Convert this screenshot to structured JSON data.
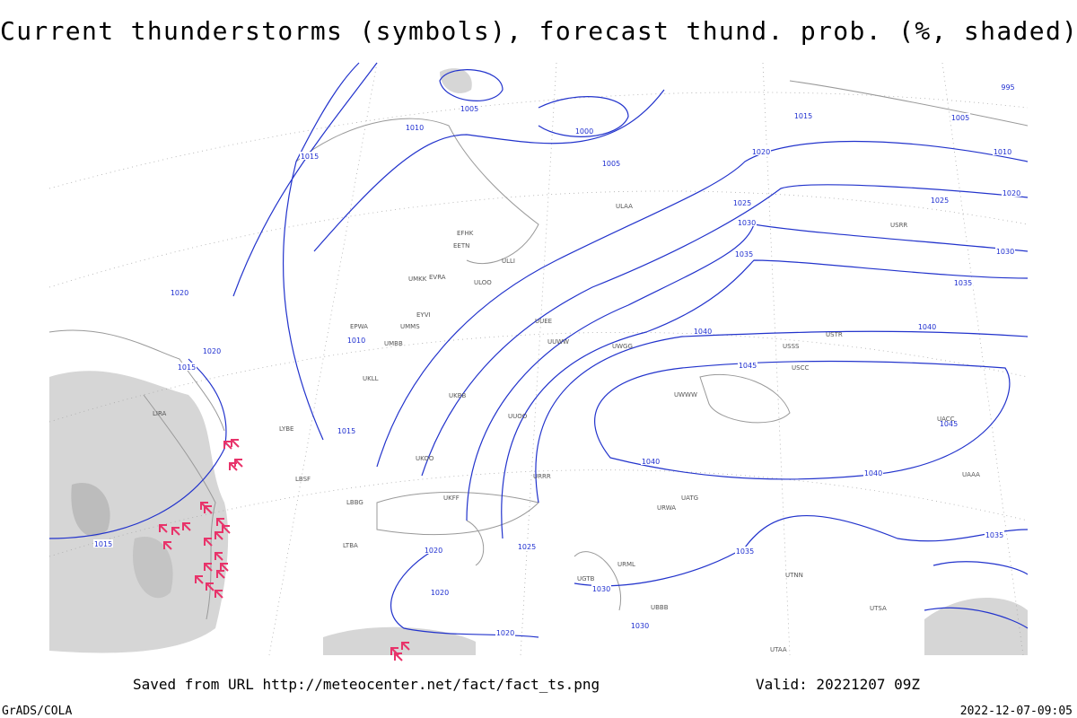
{
  "header": {
    "title": "Current thunderstorms (symbols), forecast thund. prob. (%, shaded)"
  },
  "map": {
    "isobar_labels": [
      "1005",
      "1010",
      "1000",
      "1005",
      "1015",
      "1015",
      "1020",
      "1025",
      "1030",
      "1035",
      "1020",
      "1010",
      "1020",
      "1015",
      "1015",
      "1040",
      "1045",
      "1040",
      "1040",
      "1035",
      "1040",
      "1030",
      "1025",
      "1020",
      "1010",
      "1005",
      "995",
      "1045",
      "1015",
      "1020",
      "1025",
      "1020",
      "1020",
      "1030",
      "1030",
      "1035",
      "1035"
    ],
    "stations": [
      "ULAA",
      "EFHK",
      "EETN",
      "EVRA",
      "ULOO",
      "UMKK",
      "EYVI",
      "UMMS",
      "UMBB",
      "EPWA",
      "UKLL",
      "UKBB",
      "LIRA",
      "LYBE",
      "LBSF",
      "LBBG",
      "LTBA",
      "UKOO",
      "UKFF",
      "URRR",
      "URWA",
      "UATG",
      "UACC",
      "UAAA",
      "USSS",
      "USCC",
      "USTR",
      "UWGG",
      "UWWW",
      "URML",
      "UTNN",
      "UTSA",
      "UTAA",
      "UBBB",
      "UGTB",
      "UUOO",
      "ULLI",
      "USRR",
      "UUEE",
      "UUWW"
    ]
  },
  "footer": {
    "source": "Saved from URL http://meteocenter.net/fact/fact_ts.png",
    "valid": "Valid: 20221207 09Z",
    "software": "GrADS/COLA",
    "timestamp": "2022-12-07-09:05"
  }
}
